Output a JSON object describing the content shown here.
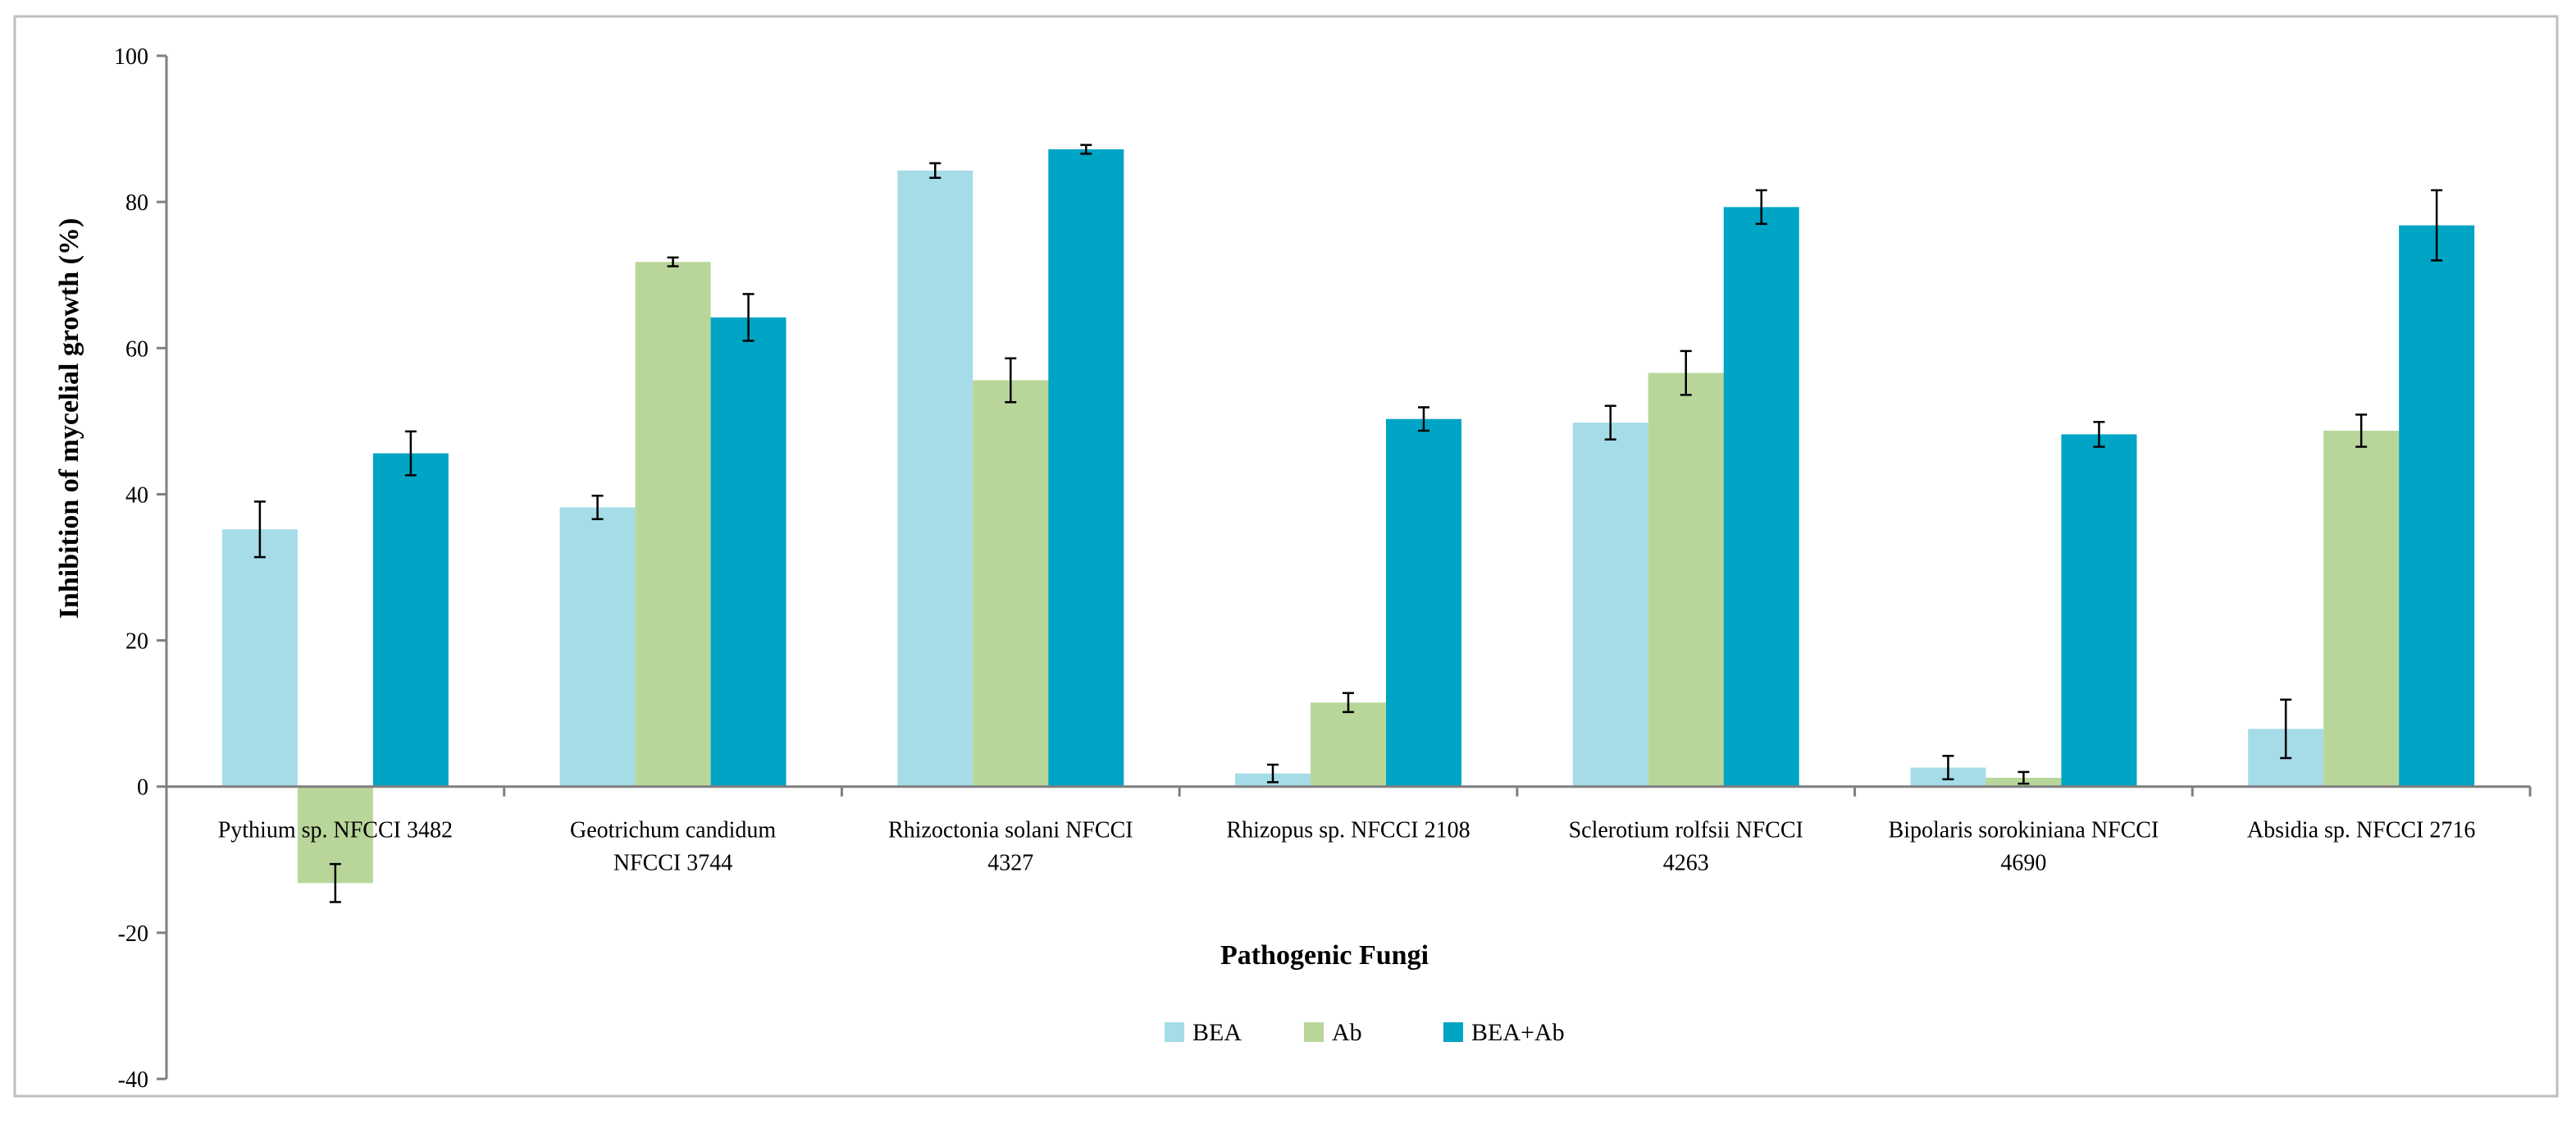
{
  "chart_data": {
    "type": "bar",
    "title": "",
    "xlabel": "Pathogenic Fungi",
    "ylabel": "Inhibition of mycelial growth (%)",
    "ylim": [
      -40,
      100
    ],
    "yticks": [
      100,
      80,
      60,
      40,
      20,
      0,
      -20,
      -40
    ],
    "categories": [
      [
        "Pythium sp. NFCCI 3482"
      ],
      [
        "Geotrichum candidum",
        "NFCCI 3744"
      ],
      [
        "Rhizoctonia solani NFCCI",
        "4327"
      ],
      [
        "Rhizopus sp. NFCCI 2108"
      ],
      [
        "Sclerotium rolfsii NFCCI",
        "4263"
      ],
      [
        "Bipolaris sorokiniana NFCCI",
        "4690"
      ],
      [
        "Absidia sp. NFCCI 2716"
      ]
    ],
    "series": [
      {
        "name": "BEA",
        "color": "#A6DCE8",
        "values": [
          35.2,
          38.2,
          84.3,
          1.8,
          49.8,
          2.6,
          7.9
        ],
        "errors": [
          3.8,
          1.6,
          1.0,
          1.2,
          2.3,
          1.6,
          4.0
        ]
      },
      {
        "name": "Ab",
        "color": "#B9D69A",
        "values": [
          -13.2,
          71.8,
          55.6,
          11.5,
          56.6,
          1.2,
          48.7
        ],
        "errors": [
          2.6,
          0.6,
          3.0,
          1.3,
          3.0,
          0.8,
          2.2
        ]
      },
      {
        "name": "BEA+Ab",
        "color": "#00A4C4",
        "values": [
          45.6,
          64.2,
          87.2,
          50.3,
          79.3,
          48.2,
          76.8
        ],
        "errors": [
          3.0,
          3.2,
          0.6,
          1.6,
          2.3,
          1.7,
          4.8
        ]
      }
    ],
    "legend_position": "bottom-center",
    "grid": false
  }
}
